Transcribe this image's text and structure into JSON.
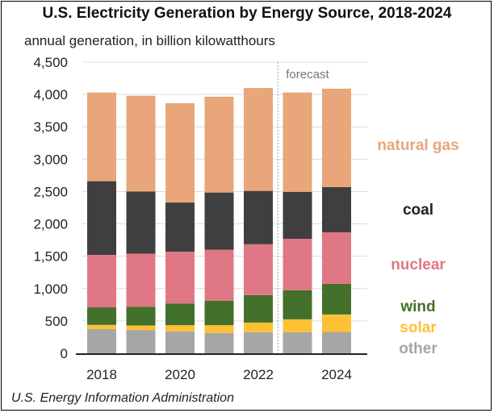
{
  "chart_data": {
    "type": "bar",
    "stacked": true,
    "title": "U.S. Electricity Generation by Energy Source, 2018-2024",
    "ylabel": "annual generation, in billion kilowatthours",
    "xlabel": "",
    "source": "U.S. Energy Information Administration",
    "ylim": [
      0,
      4500
    ],
    "yticks": [
      0,
      500,
      1000,
      1500,
      2000,
      2500,
      3000,
      3500,
      4000,
      4500
    ],
    "ytick_labels": [
      "0",
      "500",
      "1,000",
      "1,500",
      "2,000",
      "2,500",
      "3,000",
      "3,500",
      "4,000",
      "4,500"
    ],
    "categories": [
      "2018",
      "2019",
      "2020",
      "2021",
      "2022",
      "2023",
      "2024"
    ],
    "xtick_labels": [
      "2018",
      "",
      "2020",
      "",
      "2022",
      "",
      "2024"
    ],
    "forecast_label": "forecast",
    "forecast_start": "2023",
    "grid": true,
    "legend_placement": "right",
    "series": [
      {
        "name": "other",
        "color": "#a6a6a6",
        "values": [
          375,
          360,
          340,
          315,
          325,
          325,
          330
        ]
      },
      {
        "name": "solar",
        "color": "#fdc135",
        "values": [
          65,
          70,
          95,
          120,
          150,
          200,
          270
        ]
      },
      {
        "name": "wind",
        "color": "#43702b",
        "values": [
          270,
          290,
          335,
          375,
          425,
          450,
          475
        ]
      },
      {
        "name": "nuclear",
        "color": "#e07784",
        "values": [
          810,
          820,
          800,
          790,
          785,
          795,
          795
        ]
      },
      {
        "name": "coal",
        "color": "#3f3f3f",
        "values": [
          1140,
          960,
          760,
          885,
          825,
          725,
          700
        ]
      },
      {
        "name": "natural gas",
        "color": "#e8a67a",
        "values": [
          1370,
          1480,
          1535,
          1480,
          1590,
          1535,
          1520
        ]
      }
    ]
  }
}
